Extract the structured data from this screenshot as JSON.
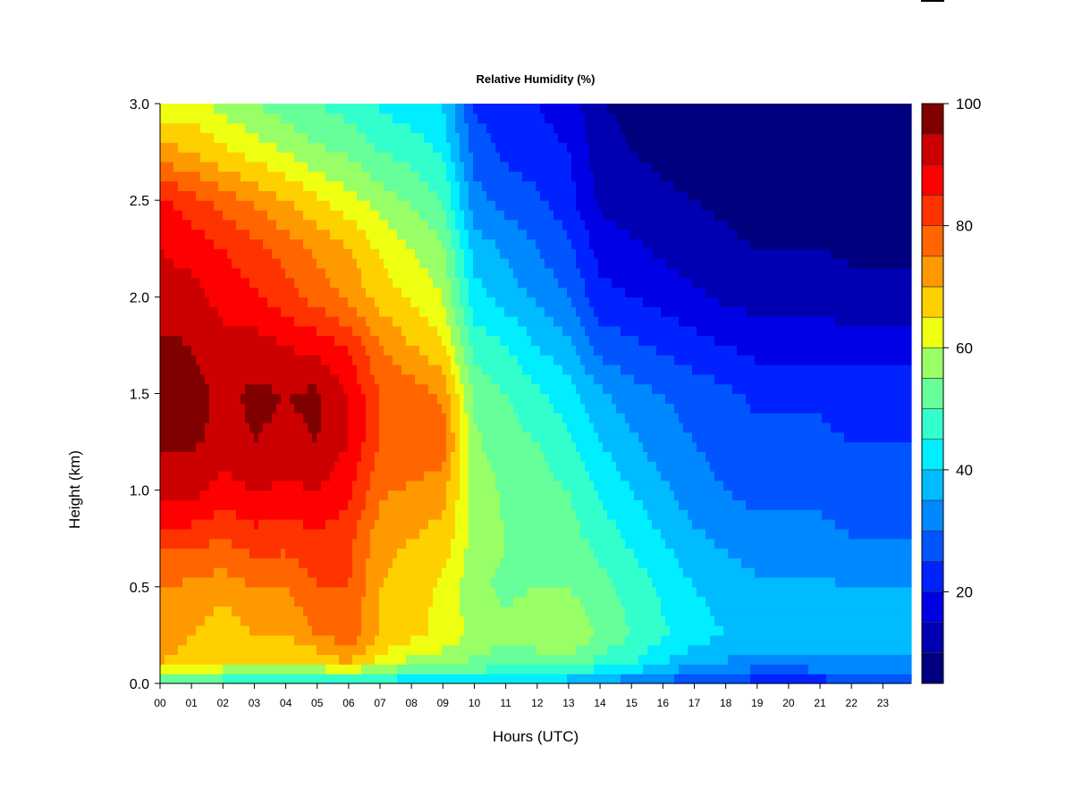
{
  "chart_data": {
    "type": "heatmap",
    "title": "Relative Humidity (%)",
    "xlabel": "Hours (UTC)",
    "ylabel": "Height (km)",
    "x_ticks": [
      "00",
      "01",
      "02",
      "03",
      "04",
      "05",
      "06",
      "07",
      "08",
      "09",
      "10",
      "11",
      "12",
      "13",
      "14",
      "15",
      "16",
      "17",
      "18",
      "19",
      "20",
      "21",
      "22",
      "23"
    ],
    "y_ticks": [
      "0.0",
      "0.5",
      "1.0",
      "1.5",
      "2.0",
      "2.5",
      "3.0"
    ],
    "xlim": [
      0,
      23.9
    ],
    "ylim": [
      0,
      3.0
    ],
    "hours": [
      0,
      1,
      2,
      3,
      4,
      5,
      6,
      7,
      8,
      9,
      10,
      11,
      12,
      13,
      14,
      15,
      16,
      17,
      18,
      19,
      20,
      21,
      22,
      23
    ],
    "heights_km": [
      0.0,
      0.1,
      0.25,
      0.5,
      0.75,
      1.0,
      1.25,
      1.5,
      1.75,
      2.0,
      2.25,
      2.5,
      2.75,
      3.0
    ],
    "values": [
      [
        45,
        70,
        72,
        75,
        82,
        92,
        96,
        98,
        96,
        92,
        90,
        86,
        72,
        62
      ],
      [
        45,
        68,
        70,
        74,
        82,
        92,
        96,
        97,
        95,
        92,
        88,
        82,
        70,
        62
      ],
      [
        45,
        65,
        66,
        72,
        80,
        88,
        93,
        94,
        92,
        88,
        85,
        78,
        66,
        58
      ],
      [
        44,
        65,
        70,
        75,
        83,
        90,
        95,
        96,
        92,
        86,
        82,
        74,
        63,
        55
      ],
      [
        43,
        65,
        70,
        75,
        82,
        89,
        94,
        95,
        90,
        82,
        78,
        70,
        60,
        52
      ],
      [
        42,
        65,
        75,
        80,
        84,
        90,
        95,
        96,
        88,
        78,
        74,
        66,
        56,
        50
      ],
      [
        40,
        70,
        78,
        80,
        82,
        86,
        90,
        90,
        84,
        74,
        70,
        62,
        54,
        48
      ],
      [
        40,
        62,
        70,
        70,
        72,
        76,
        80,
        80,
        75,
        68,
        64,
        58,
        50,
        44
      ],
      [
        40,
        58,
        66,
        67,
        70,
        74,
        80,
        78,
        70,
        64,
        60,
        54,
        48,
        42
      ],
      [
        40,
        56,
        64,
        64,
        68,
        72,
        78,
        74,
        66,
        60,
        56,
        50,
        44,
        40
      ],
      [
        40,
        54,
        58,
        56,
        58,
        58,
        56,
        54,
        48,
        42,
        38,
        32,
        28,
        24
      ],
      [
        40,
        52,
        56,
        54,
        55,
        54,
        52,
        50,
        45,
        38,
        34,
        28,
        24,
        22
      ],
      [
        38,
        52,
        58,
        55,
        54,
        52,
        50,
        46,
        40,
        34,
        30,
        26,
        22,
        20
      ],
      [
        36,
        52,
        60,
        55,
        52,
        50,
        46,
        42,
        36,
        30,
        26,
        22,
        20,
        18
      ],
      [
        33,
        48,
        54,
        52,
        48,
        44,
        40,
        36,
        28,
        22,
        18,
        14,
        12,
        10
      ],
      [
        30,
        45,
        50,
        48,
        44,
        40,
        36,
        32,
        26,
        20,
        16,
        12,
        10,
        9
      ],
      [
        28,
        40,
        46,
        44,
        40,
        36,
        32,
        30,
        24,
        18,
        14,
        11,
        9,
        8
      ],
      [
        26,
        36,
        42,
        40,
        36,
        32,
        30,
        28,
        22,
        16,
        12,
        10,
        8,
        7
      ],
      [
        24,
        34,
        40,
        38,
        34,
        30,
        28,
        26,
        20,
        14,
        11,
        9,
        7,
        6
      ],
      [
        22,
        32,
        38,
        36,
        32,
        28,
        26,
        24,
        18,
        13,
        10,
        8,
        7,
        6
      ],
      [
        22,
        32,
        38,
        36,
        32,
        28,
        26,
        24,
        18,
        13,
        10,
        8,
        7,
        6
      ],
      [
        22,
        33,
        38,
        36,
        32,
        28,
        26,
        24,
        18,
        13,
        10,
        8,
        7,
        6
      ],
      [
        24,
        34,
        38,
        35,
        30,
        27,
        25,
        23,
        17,
        12,
        9,
        7,
        6,
        6
      ],
      [
        24,
        34,
        38,
        35,
        30,
        27,
        25,
        23,
        17,
        12,
        9,
        7,
        6,
        6
      ]
    ],
    "colorbar": {
      "ticks": [
        "20",
        "40",
        "60",
        "80",
        "100"
      ],
      "tick_values": [
        20,
        40,
        60,
        80,
        100
      ],
      "min": 5,
      "max": 100,
      "levels": [
        {
          "lo": 5,
          "hi": 10,
          "color": "#00007F"
        },
        {
          "lo": 10,
          "hi": 15,
          "color": "#0000B2"
        },
        {
          "lo": 15,
          "hi": 20,
          "color": "#0000E5"
        },
        {
          "lo": 20,
          "hi": 25,
          "color": "#0022FF"
        },
        {
          "lo": 25,
          "hi": 30,
          "color": "#0055FF"
        },
        {
          "lo": 30,
          "hi": 35,
          "color": "#0088FF"
        },
        {
          "lo": 35,
          "hi": 40,
          "color": "#00BBFF"
        },
        {
          "lo": 40,
          "hi": 45,
          "color": "#00EEFF"
        },
        {
          "lo": 45,
          "hi": 50,
          "color": "#33FFCC"
        },
        {
          "lo": 50,
          "hi": 55,
          "color": "#66FF99"
        },
        {
          "lo": 55,
          "hi": 60,
          "color": "#99FF66"
        },
        {
          "lo": 60,
          "hi": 65,
          "color": "#EEFF11"
        },
        {
          "lo": 65,
          "hi": 70,
          "color": "#FFD000"
        },
        {
          "lo": 70,
          "hi": 75,
          "color": "#FF9900"
        },
        {
          "lo": 75,
          "hi": 80,
          "color": "#FF6600"
        },
        {
          "lo": 80,
          "hi": 85,
          "color": "#FF3300"
        },
        {
          "lo": 85,
          "hi": 90,
          "color": "#FF0000"
        },
        {
          "lo": 90,
          "hi": 95,
          "color": "#CC0000"
        },
        {
          "lo": 95,
          "hi": 100,
          "color": "#800000"
        }
      ]
    },
    "grid": false,
    "colormap": "jet"
  }
}
